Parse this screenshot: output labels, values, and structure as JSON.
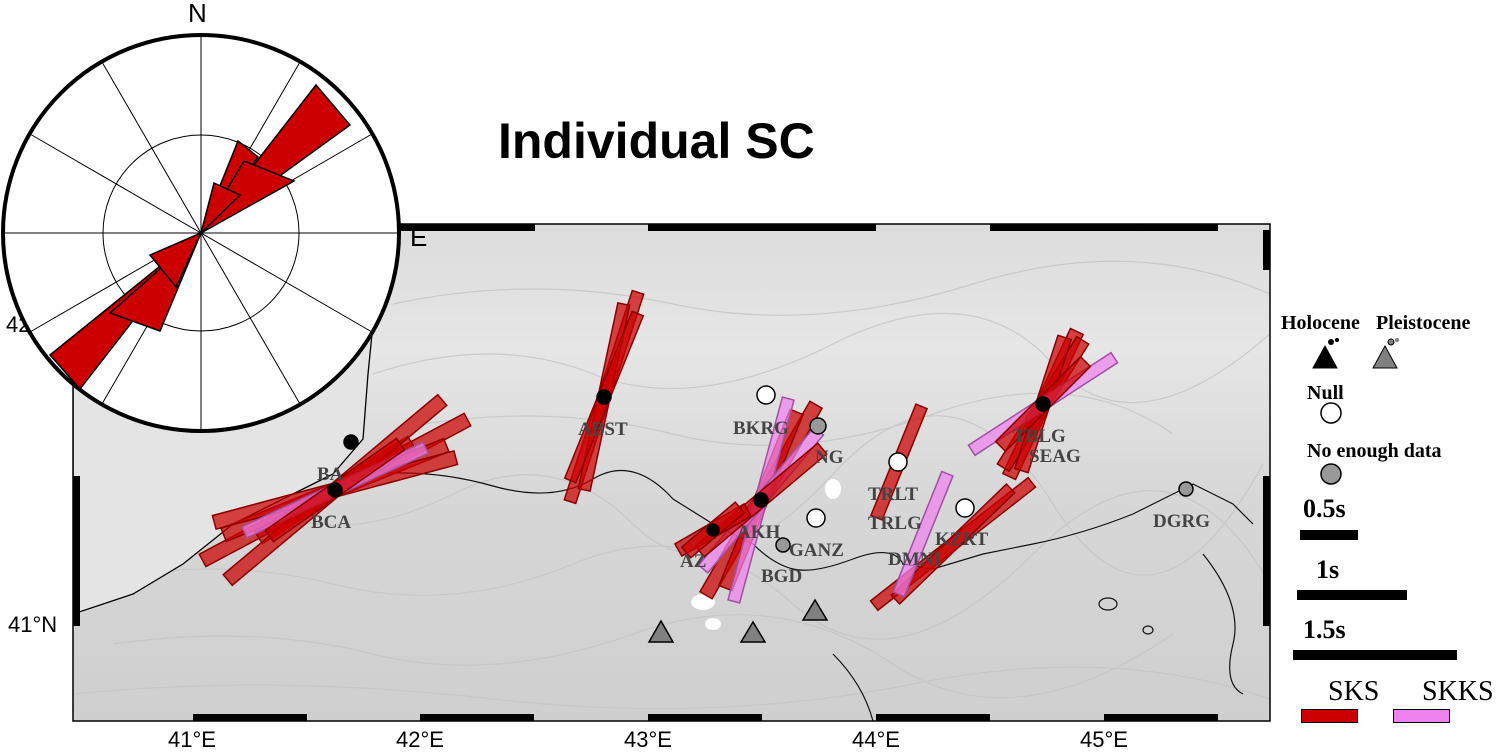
{
  "title": "Individual SC",
  "rose": {
    "north_label": "N",
    "east_label": "E"
  },
  "axes": {
    "x_ticks": [
      "41°E",
      "42°E",
      "43°E",
      "44°E",
      "45°E"
    ],
    "y_ticks": [
      "41°N",
      "42"
    ]
  },
  "stations": [
    {
      "code": "ABST",
      "type": "measured"
    },
    {
      "code": "BA",
      "type": "measured"
    },
    {
      "code": "BCA",
      "type": "measured"
    },
    {
      "code": "BKRG",
      "type": "no_data"
    },
    {
      "code": "NG",
      "type": "measured"
    },
    {
      "code": "AKH",
      "type": "measured"
    },
    {
      "code": "AZ",
      "type": "measured"
    },
    {
      "code": "GANZ",
      "type": "null"
    },
    {
      "code": "BGD",
      "type": "no_data"
    },
    {
      "code": "TRLT",
      "type": "null"
    },
    {
      "code": "TRLG",
      "type": "measured"
    },
    {
      "code": "DMNI",
      "type": "measured"
    },
    {
      "code": "KZRT",
      "type": "null"
    },
    {
      "code": "TBLG",
      "type": "measured"
    },
    {
      "code": "SEAG",
      "type": "measured"
    },
    {
      "code": "DGRG",
      "type": "no_data"
    }
  ],
  "legend": {
    "holocene": "Holocene",
    "pleistocene": "Pleistocene",
    "null": "Null",
    "no_data": "No enough data",
    "scale": [
      "0.5s",
      "1s",
      "1.5s"
    ],
    "sks": "SKS",
    "skks": "SKKS"
  },
  "colors": {
    "sks": "#cc0000",
    "skks": "#ee82ee",
    "no_data": "#999999",
    "pleistocene": "#808080",
    "holocene": "#000000"
  }
}
